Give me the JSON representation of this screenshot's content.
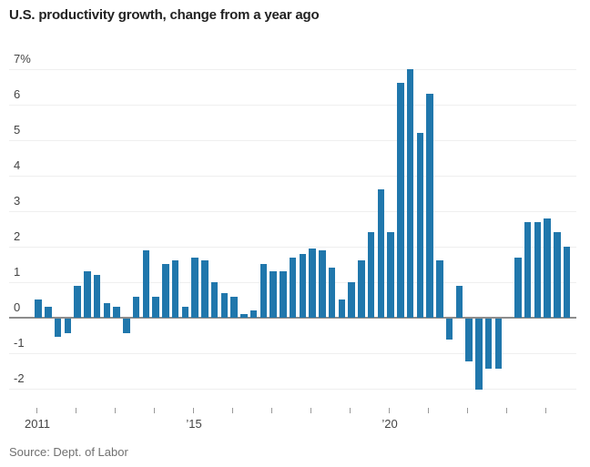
{
  "header": {
    "title": "U.S. productivity growth, change from a year ago"
  },
  "footer": {
    "source": "Source: Dept. of Labor"
  },
  "colors": {
    "bar": "#2077AC",
    "gridline": "#EFEFEF",
    "zero_line": "#8C8C8C",
    "axis_text": "#444444",
    "title_text": "#222222",
    "source_text": "#707070"
  },
  "chart_data": {
    "type": "bar",
    "title": "U.S. productivity growth, change from a year ago",
    "xlabel": "",
    "ylabel": "",
    "unit": "percent",
    "ylim": [
      -2.6,
      7.4
    ],
    "grid": "horizontal",
    "legend": "none",
    "quarters": [
      "2011 Q1",
      "2011 Q2",
      "2011 Q3",
      "2011 Q4",
      "2012 Q1",
      "2012 Q2",
      "2012 Q3",
      "2012 Q4",
      "2013 Q1",
      "2013 Q2",
      "2013 Q3",
      "2013 Q4",
      "2014 Q1",
      "2014 Q2",
      "2014 Q3",
      "2014 Q4",
      "2015 Q1",
      "2015 Q2",
      "2015 Q3",
      "2015 Q4",
      "2016 Q1",
      "2016 Q2",
      "2016 Q3",
      "2016 Q4",
      "2017 Q1",
      "2017 Q2",
      "2017 Q3",
      "2017 Q4",
      "2018 Q1",
      "2018 Q2",
      "2018 Q3",
      "2018 Q4",
      "2019 Q1",
      "2019 Q2",
      "2019 Q3",
      "2019 Q4",
      "2020 Q1",
      "2020 Q2",
      "2020 Q3",
      "2020 Q4",
      "2021 Q1",
      "2021 Q2",
      "2021 Q3",
      "2021 Q4",
      "2022 Q1",
      "2022 Q2",
      "2022 Q3",
      "2022 Q4",
      "2023 Q1",
      "2023 Q2",
      "2023 Q3",
      "2023 Q4",
      "2024 Q1",
      "2024 Q2",
      "2024 Q3"
    ],
    "values": [
      0.5,
      0.3,
      -0.5,
      -0.4,
      0.9,
      1.3,
      1.2,
      0.4,
      0.3,
      -0.4,
      0.6,
      1.9,
      0.6,
      1.5,
      1.6,
      0.3,
      1.7,
      1.6,
      1.0,
      0.7,
      0.6,
      0.1,
      0.2,
      1.5,
      1.3,
      1.3,
      1.7,
      1.8,
      1.95,
      1.9,
      1.4,
      0.5,
      1.0,
      1.6,
      2.4,
      3.6,
      2.4,
      6.6,
      7.0,
      5.2,
      6.3,
      1.6,
      -0.6,
      0.9,
      -1.2,
      -2.0,
      -1.4,
      -1.4,
      0.0,
      1.7,
      2.7,
      2.7,
      2.8,
      2.4,
      2.0
    ],
    "y_axis": {
      "ticks": [
        {
          "label": "7%",
          "value": 7
        },
        {
          "label": "6",
          "value": 6
        },
        {
          "label": "5",
          "value": 5
        },
        {
          "label": "4",
          "value": 4
        },
        {
          "label": "3",
          "value": 3
        },
        {
          "label": "2",
          "value": 2
        },
        {
          "label": "1",
          "value": 1
        },
        {
          "label": "0",
          "value": 0
        },
        {
          "label": "-1",
          "value": -1
        },
        {
          "label": "-2",
          "value": -2
        }
      ]
    },
    "x_axis": {
      "ticks": [
        {
          "year": 2011,
          "label": "2011"
        },
        {
          "year": 2012,
          "label": ""
        },
        {
          "year": 2013,
          "label": ""
        },
        {
          "year": 2014,
          "label": ""
        },
        {
          "year": 2015,
          "label": "’15"
        },
        {
          "year": 2016,
          "label": ""
        },
        {
          "year": 2017,
          "label": ""
        },
        {
          "year": 2018,
          "label": ""
        },
        {
          "year": 2019,
          "label": ""
        },
        {
          "year": 2020,
          "label": "’20"
        },
        {
          "year": 2021,
          "label": ""
        },
        {
          "year": 2022,
          "label": ""
        },
        {
          "year": 2023,
          "label": ""
        },
        {
          "year": 2024,
          "label": ""
        }
      ]
    }
  }
}
